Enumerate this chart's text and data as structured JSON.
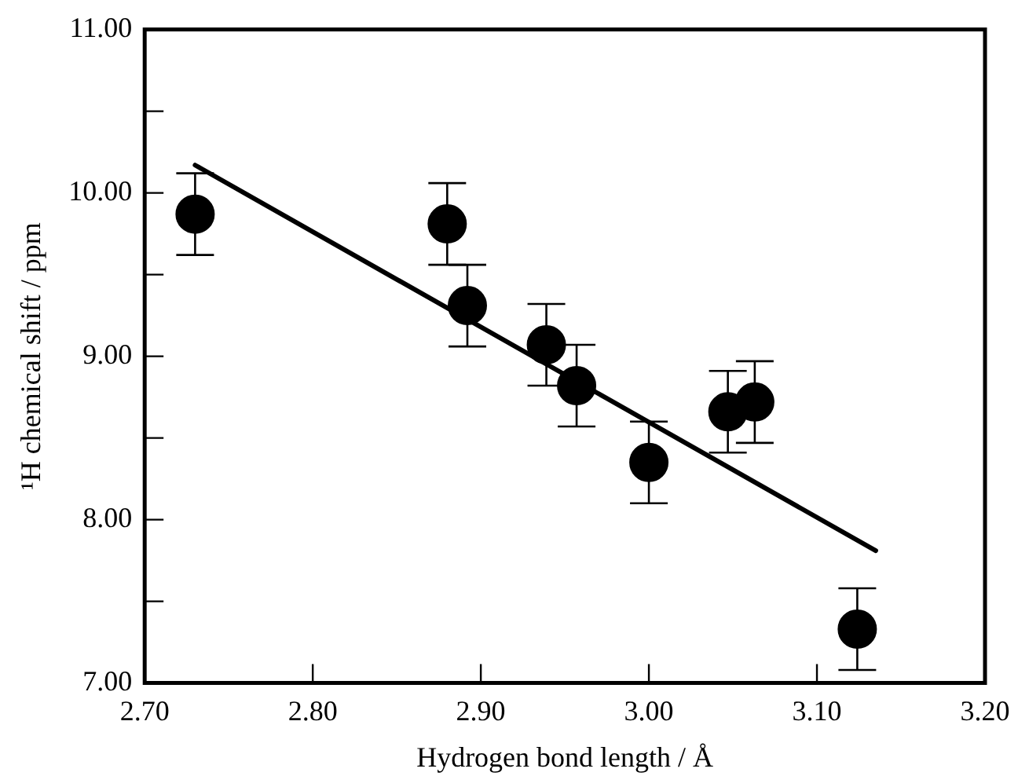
{
  "chart_data": {
    "type": "scatter",
    "xlabel": "Hydrogen bond length / Å",
    "ylabel": "¹H chemical shift / ppm",
    "xlim": [
      2.7,
      3.2
    ],
    "ylim": [
      7,
      11
    ],
    "xticks": [
      {
        "value": 2.7,
        "label": "2.70"
      },
      {
        "value": 2.8,
        "label": "2.80"
      },
      {
        "value": 2.9,
        "label": "2.90"
      },
      {
        "value": 3.0,
        "label": "3.00"
      },
      {
        "value": 3.1,
        "label": "3.10"
      },
      {
        "value": 3.2,
        "label": "3.20"
      }
    ],
    "yticks": [
      {
        "value": 7,
        "label": "7.00"
      },
      {
        "value": 7.5,
        "label": null
      },
      {
        "value": 8,
        "label": "8.00"
      },
      {
        "value": 8.5,
        "label": null
      },
      {
        "value": 9,
        "label": "9.00"
      },
      {
        "value": 9.5,
        "label": null
      },
      {
        "value": 10,
        "label": "10.00"
      },
      {
        "value": 10.5,
        "label": null
      },
      {
        "value": 11,
        "label": "11.00"
      }
    ],
    "series": [
      {
        "type": "scatter",
        "color": "#000000",
        "marker": "circle",
        "x": [
          2.73,
          2.88,
          2.892,
          2.939,
          2.957,
          3.0,
          3.047,
          3.063,
          3.124
        ],
        "values": [
          9.87,
          9.81,
          9.31,
          9.07,
          8.82,
          8.35,
          8.66,
          8.72,
          7.33
        ],
        "errors": [
          0.25,
          0.25,
          0.25,
          0.25,
          0.25,
          0.25,
          0.25,
          0.25,
          0.25
        ]
      },
      {
        "type": "line",
        "color": "#000000",
        "marker": "none",
        "line_style": "solid",
        "x": [
          2.73,
          3.135
        ],
        "values": [
          10.17,
          7.81
        ]
      }
    ],
    "legend": false
  }
}
